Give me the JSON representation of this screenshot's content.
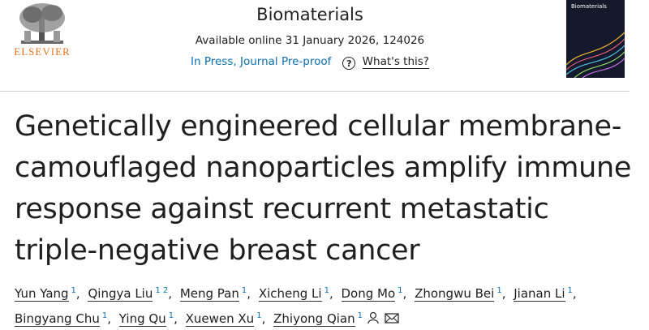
{
  "header": {
    "publisher": "ELSEVIER",
    "journal": "Biomaterials",
    "availability": "Available online 31 January 2026, 124026",
    "status": "In Press, Journal Pre-proof",
    "help": "What's this?",
    "cover_title": "Biomaterials"
  },
  "article": {
    "title": "Genetically engineered cellular membrane-camouflaged nanoparticles amplify immune response against recurrent metastatic triple-negative breast cancer",
    "separator": ",",
    "authors": [
      {
        "name": "Yun Yang",
        "affiliations": "1"
      },
      {
        "name": "Qingya Liu",
        "affiliations": "1 2"
      },
      {
        "name": "Meng Pan",
        "affiliations": "1"
      },
      {
        "name": "Xicheng Li",
        "affiliations": "1"
      },
      {
        "name": "Dong Mo",
        "affiliations": "1"
      },
      {
        "name": "Zhongwu Bei",
        "affiliations": "1"
      },
      {
        "name": "Jianan Li",
        "affiliations": "1"
      },
      {
        "name": "Bingyang Chu",
        "affiliations": "1"
      },
      {
        "name": "Ying Qu",
        "affiliations": "1"
      },
      {
        "name": "Xuewen Xu",
        "affiliations": "1"
      },
      {
        "name": "Zhiyong Qian",
        "affiliations": "1"
      }
    ]
  }
}
